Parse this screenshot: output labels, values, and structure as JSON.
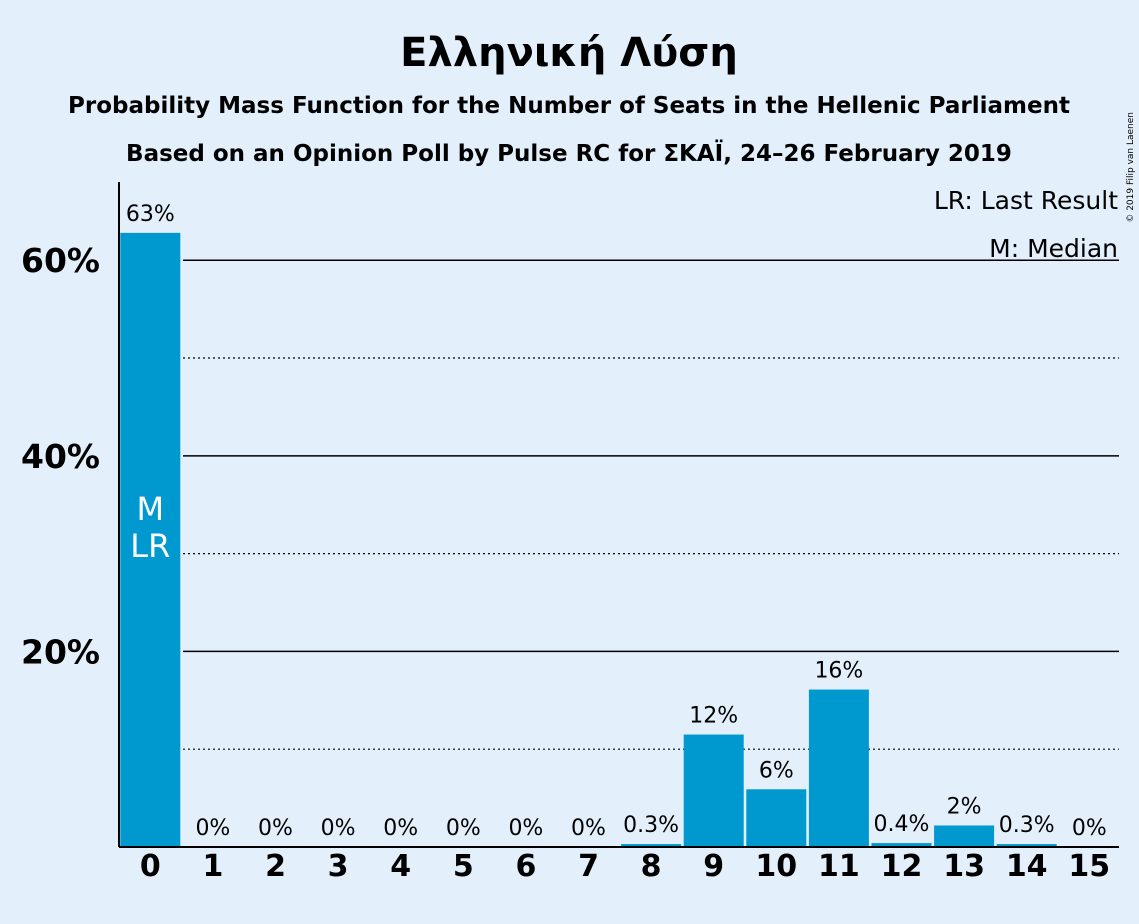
{
  "chart_data": {
    "type": "bar",
    "title": "Ελληνική Λύση",
    "subtitle": "Probability Mass Function for the Number of Seats in the Hellenic Parliament",
    "subtitle2": "Based on an Opinion Poll by Pulse RC for ΣΚΑΪ, 24–26 February 2019",
    "categories": [
      "0",
      "1",
      "2",
      "3",
      "4",
      "5",
      "6",
      "7",
      "8",
      "9",
      "10",
      "11",
      "12",
      "13",
      "14",
      "15"
    ],
    "values": [
      62.8,
      0,
      0,
      0,
      0,
      0,
      0,
      0,
      0.3,
      11.5,
      5.9,
      16.1,
      0.4,
      2.2,
      0.3,
      0
    ],
    "value_labels": [
      "63%",
      "0%",
      "0%",
      "0%",
      "0%",
      "0%",
      "0%",
      "0%",
      "0.3%",
      "12%",
      "6%",
      "16%",
      "0.4%",
      "2%",
      "0.3%",
      "0%"
    ],
    "ylim": [
      0,
      68
    ],
    "yticks": [
      20,
      40,
      60
    ],
    "ytick_labels": [
      "20%",
      "40%",
      "60%"
    ],
    "minor_gridlines": [
      10,
      30,
      50
    ],
    "bar_markers": [
      {
        "category": "0",
        "lines": [
          "M",
          "LR"
        ]
      }
    ],
    "legend": {
      "placement": "top-right",
      "entries": [
        "LR: Last Result",
        "M: Median"
      ]
    },
    "copyright": "© 2019 Filip van Laenen",
    "bar_color": "#0099cf",
    "background": "#e3f0fc"
  }
}
